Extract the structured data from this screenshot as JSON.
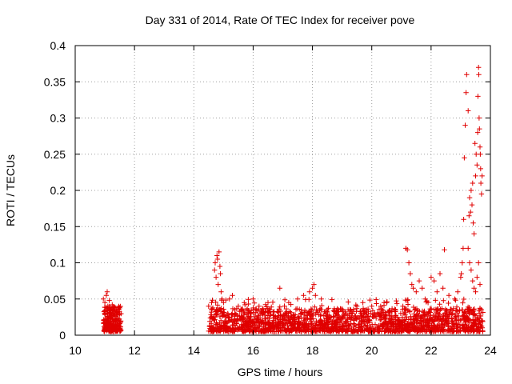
{
  "chart_data": {
    "type": "scatter",
    "title": "Day 331 of 2014, Rate Of TEC Index for receiver pove",
    "xlabel": "GPS time / hours",
    "ylabel": "ROTI / TECUs",
    "xlim": [
      10,
      24
    ],
    "ylim": [
      0,
      0.4
    ],
    "xticks": [
      10,
      12,
      14,
      16,
      18,
      20,
      22,
      24
    ],
    "yticks": [
      0,
      0.05,
      0.1,
      0.15,
      0.2,
      0.25,
      0.3,
      0.35,
      0.4
    ],
    "xtick_labels": [
      "10",
      "12",
      "14",
      "16",
      "18",
      "20",
      "22",
      "24"
    ],
    "ytick_labels": [
      "0",
      "0.05",
      "0.1",
      "0.15",
      "0.2",
      "0.25",
      "0.3",
      "0.35",
      "0.4"
    ],
    "grid": true,
    "marker": "+",
    "color": "#e00000",
    "series": [
      {
        "name": "ROTI",
        "points": [
          [
            10.95,
            0.05
          ],
          [
            11.0,
            0.045
          ],
          [
            11.05,
            0.055
          ],
          [
            11.08,
            0.06
          ],
          [
            11.1,
            0.04
          ],
          [
            11.15,
            0.048
          ],
          [
            11.2,
            0.035
          ],
          [
            11.25,
            0.042
          ],
          [
            11.3,
            0.03
          ],
          [
            11.35,
            0.038
          ],
          [
            11.4,
            0.032
          ],
          [
            11.45,
            0.036
          ],
          [
            11.5,
            0.03
          ],
          [
            11.0,
            0.02
          ],
          [
            11.1,
            0.015
          ],
          [
            11.2,
            0.025
          ],
          [
            11.3,
            0.018
          ],
          [
            11.4,
            0.022
          ],
          [
            11.5,
            0.016
          ],
          [
            14.5,
            0.04
          ],
          [
            14.6,
            0.045
          ],
          [
            14.7,
            0.09
          ],
          [
            14.72,
            0.1
          ],
          [
            14.75,
            0.08
          ],
          [
            14.78,
            0.11
          ],
          [
            14.8,
            0.105
          ],
          [
            14.82,
            0.07
          ],
          [
            14.85,
            0.115
          ],
          [
            14.88,
            0.095
          ],
          [
            14.9,
            0.085
          ],
          [
            14.92,
            0.06
          ],
          [
            14.95,
            0.05
          ],
          [
            15.0,
            0.045
          ],
          [
            15.2,
            0.05
          ],
          [
            15.3,
            0.055
          ],
          [
            15.5,
            0.04
          ],
          [
            15.7,
            0.045
          ],
          [
            16.0,
            0.05
          ],
          [
            16.2,
            0.04
          ],
          [
            16.5,
            0.045
          ],
          [
            16.9,
            0.065
          ],
          [
            17.2,
            0.045
          ],
          [
            17.5,
            0.05
          ],
          [
            17.7,
            0.055
          ],
          [
            17.9,
            0.06
          ],
          [
            18.0,
            0.065
          ],
          [
            18.05,
            0.07
          ],
          [
            18.1,
            0.055
          ],
          [
            18.3,
            0.05
          ],
          [
            18.5,
            0.035
          ],
          [
            18.8,
            0.03
          ],
          [
            19.2,
            0.035
          ],
          [
            19.5,
            0.04
          ],
          [
            19.7,
            0.045
          ],
          [
            20.0,
            0.04
          ],
          [
            20.3,
            0.04
          ],
          [
            20.5,
            0.045
          ],
          [
            20.8,
            0.035
          ],
          [
            21.15,
            0.12
          ],
          [
            21.2,
            0.118
          ],
          [
            21.25,
            0.1
          ],
          [
            21.3,
            0.085
          ],
          [
            21.35,
            0.07
          ],
          [
            21.4,
            0.065
          ],
          [
            21.5,
            0.06
          ],
          [
            21.6,
            0.075
          ],
          [
            21.7,
            0.065
          ],
          [
            21.8,
            0.05
          ],
          [
            21.9,
            0.045
          ],
          [
            22.0,
            0.08
          ],
          [
            22.1,
            0.075
          ],
          [
            22.2,
            0.06
          ],
          [
            22.3,
            0.085
          ],
          [
            22.4,
            0.065
          ],
          [
            22.45,
            0.118
          ],
          [
            22.6,
            0.055
          ],
          [
            22.8,
            0.05
          ],
          [
            22.9,
            0.06
          ],
          [
            23.0,
            0.08
          ],
          [
            23.02,
            0.085
          ],
          [
            23.05,
            0.1
          ],
          [
            23.08,
            0.12
          ],
          [
            23.1,
            0.16
          ],
          [
            23.12,
            0.245
          ],
          [
            23.15,
            0.29
          ],
          [
            23.18,
            0.335
          ],
          [
            23.2,
            0.36
          ],
          [
            23.25,
            0.31
          ],
          [
            23.28,
            0.165
          ],
          [
            23.3,
            0.19
          ],
          [
            23.33,
            0.17
          ],
          [
            23.35,
            0.2
          ],
          [
            23.38,
            0.18
          ],
          [
            23.4,
            0.21
          ],
          [
            23.42,
            0.155
          ],
          [
            23.45,
            0.14
          ],
          [
            23.48,
            0.265
          ],
          [
            23.5,
            0.22
          ],
          [
            23.52,
            0.25
          ],
          [
            23.55,
            0.235
          ],
          [
            23.57,
            0.28
          ],
          [
            23.58,
            0.33
          ],
          [
            23.6,
            0.37
          ],
          [
            23.61,
            0.36
          ],
          [
            23.62,
            0.3
          ],
          [
            23.63,
            0.285
          ],
          [
            23.65,
            0.26
          ],
          [
            23.66,
            0.25
          ],
          [
            23.67,
            0.23
          ],
          [
            23.68,
            0.21
          ],
          [
            23.7,
            0.195
          ],
          [
            23.72,
            0.22
          ],
          [
            23.25,
            0.12
          ],
          [
            23.3,
            0.1
          ],
          [
            23.35,
            0.09
          ],
          [
            23.4,
            0.075
          ],
          [
            23.45,
            0.065
          ],
          [
            23.5,
            0.06
          ],
          [
            23.55,
            0.08
          ],
          [
            23.6,
            0.1
          ],
          [
            23.65,
            0.07
          ]
        ]
      }
    ]
  }
}
